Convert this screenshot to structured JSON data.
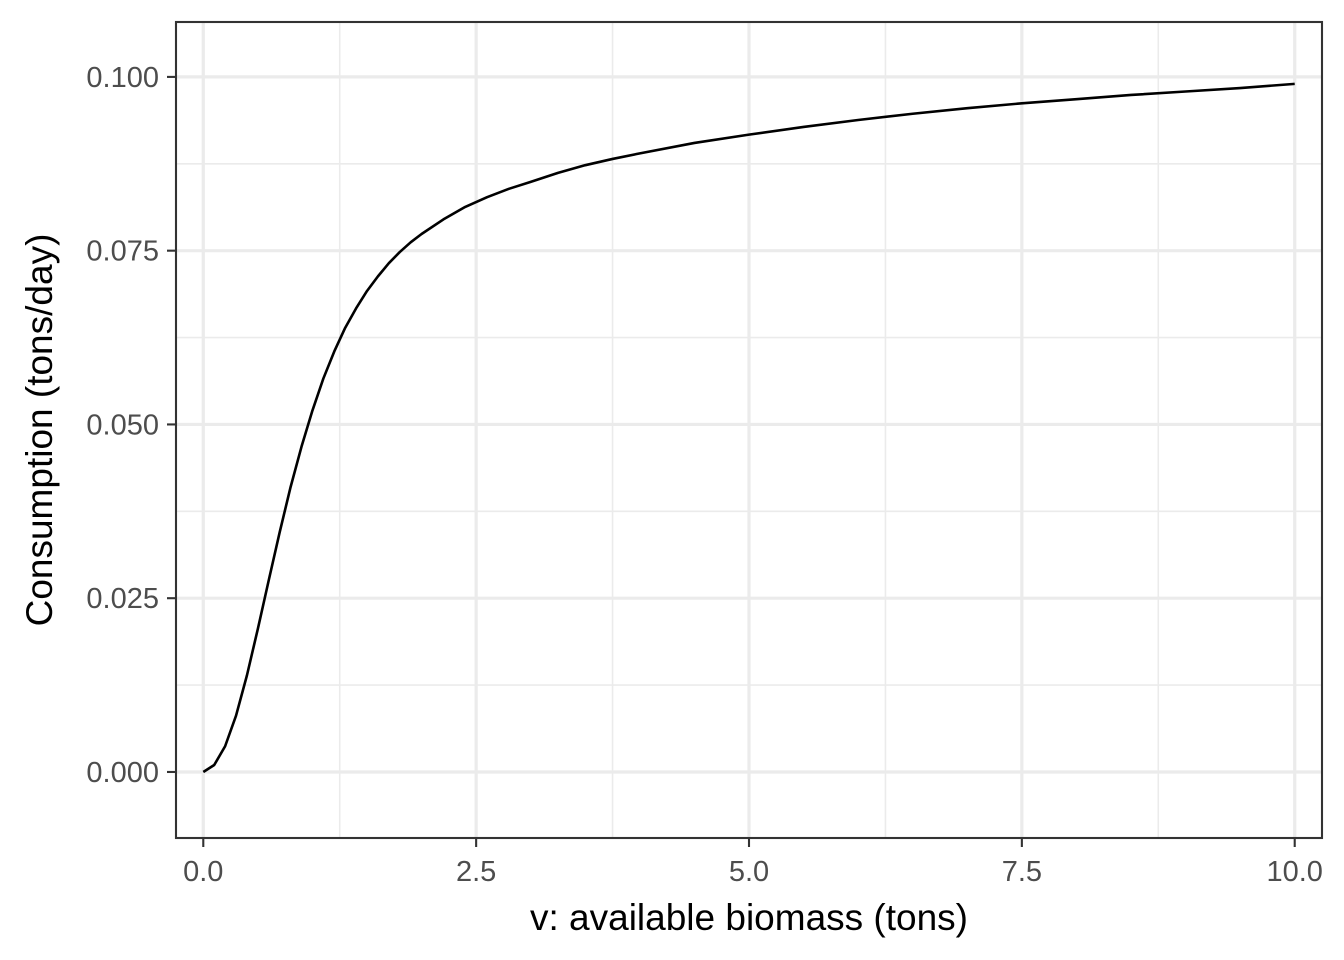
{
  "chart_data": {
    "type": "line",
    "title": "",
    "xlabel": "v: available biomass (tons)",
    "ylabel": "Consumption (tons/day)",
    "xlim": [
      -0.25,
      10.25
    ],
    "ylim": [
      -0.0095,
      0.1079
    ],
    "x_major_ticks": [
      0,
      2.5,
      5,
      7.5,
      10
    ],
    "x_minor_ticks": [
      1.25,
      3.75,
      6.25,
      8.75
    ],
    "y_major_ticks": [
      0,
      0.025,
      0.05,
      0.075,
      0.1
    ],
    "y_minor_ticks": [
      0.0125,
      0.0375,
      0.0625,
      0.0875
    ],
    "x_tick_labels": [
      "0.0",
      "2.5",
      "5.0",
      "7.5",
      "10.0"
    ],
    "y_tick_labels": [
      "0.000",
      "0.025",
      "0.050",
      "0.075",
      "0.100"
    ],
    "grid": true,
    "series": [
      {
        "name": "consumption",
        "color": "#000000",
        "x": [
          0,
          0.1,
          0.2,
          0.3,
          0.4,
          0.5,
          0.6,
          0.7,
          0.8,
          0.9,
          1.0,
          1.1,
          1.2,
          1.3,
          1.4,
          1.5,
          1.6,
          1.7,
          1.8,
          1.9,
          2.0,
          2.2,
          2.4,
          2.6,
          2.8,
          3.0,
          3.25,
          3.5,
          3.75,
          4.0,
          4.5,
          5.0,
          5.5,
          6.0,
          6.5,
          7.0,
          7.5,
          8.0,
          8.5,
          9.0,
          9.5,
          10.0
        ],
        "y": [
          0.0,
          0.001,
          0.0037,
          0.0081,
          0.0139,
          0.0206,
          0.0276,
          0.0345,
          0.041,
          0.0468,
          0.052,
          0.0566,
          0.0605,
          0.0639,
          0.0667,
          0.0692,
          0.0713,
          0.0732,
          0.0748,
          0.0762,
          0.0774,
          0.0795,
          0.0813,
          0.0827,
          0.0839,
          0.0849,
          0.0862,
          0.0873,
          0.0882,
          0.089,
          0.0905,
          0.0917,
          0.0928,
          0.0938,
          0.0947,
          0.0955,
          0.0962,
          0.0968,
          0.0974,
          0.0979,
          0.0984,
          0.099
        ]
      }
    ]
  }
}
